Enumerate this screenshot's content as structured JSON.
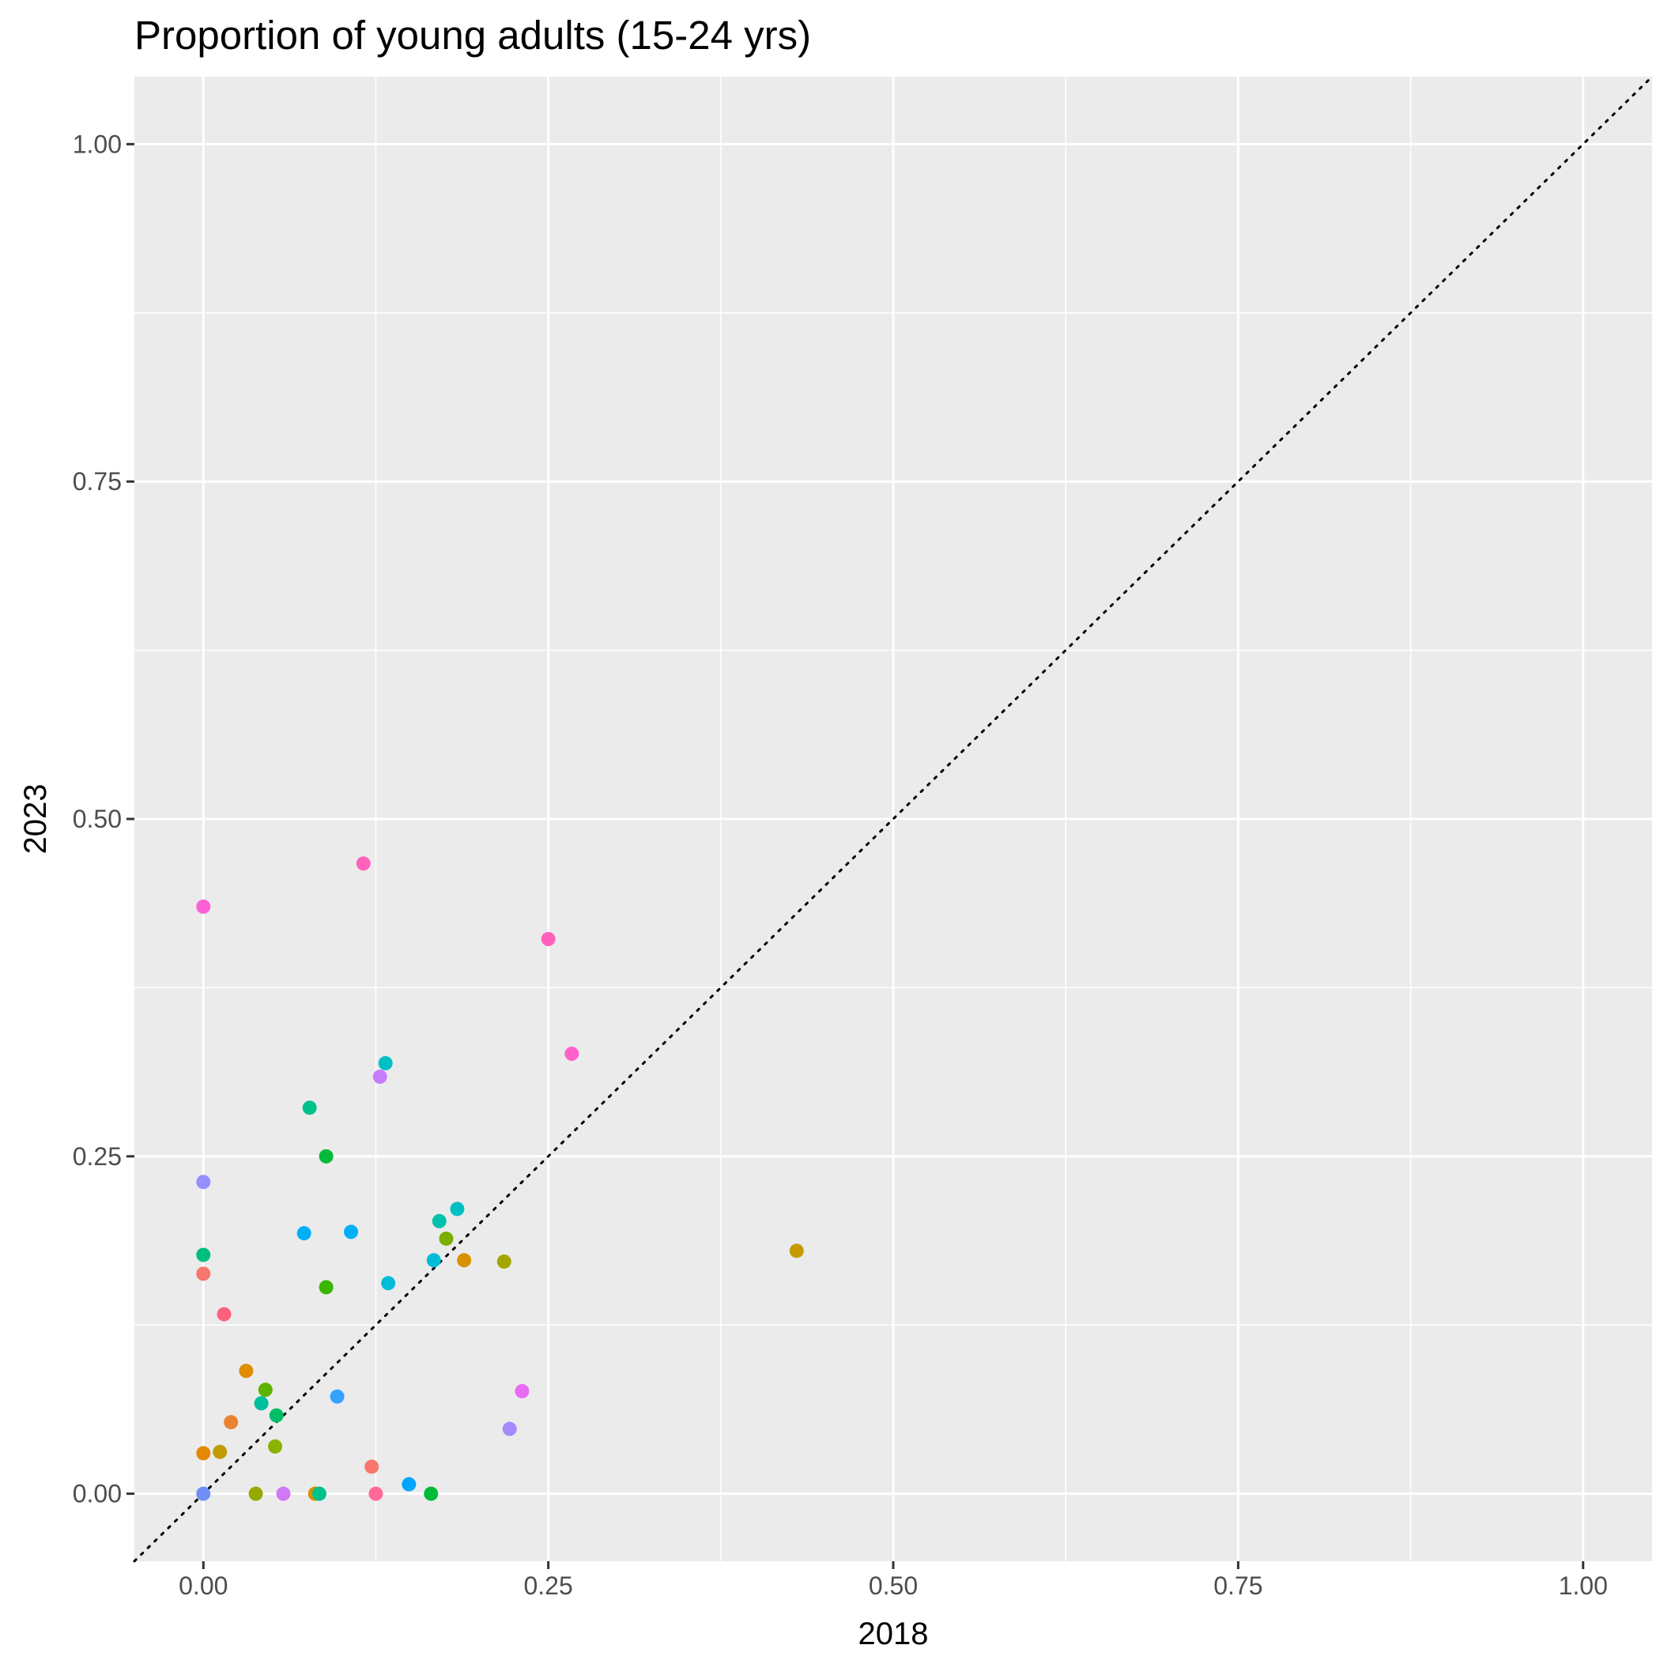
{
  "chart_data": {
    "type": "scatter",
    "title": "Proportion of young adults (15-24 yrs)",
    "xlabel": "2018",
    "ylabel": "2023",
    "xlim": [
      -0.05,
      1.05
    ],
    "ylim": [
      -0.05,
      1.05
    ],
    "x_ticks": [
      0.0,
      0.25,
      0.5,
      0.75,
      1.0
    ],
    "x_tick_labels": [
      "0.00",
      "0.25",
      "0.50",
      "0.75",
      "1.00"
    ],
    "y_ticks": [
      0.0,
      0.25,
      0.5,
      0.75,
      1.0
    ],
    "y_tick_labels": [
      "0.00",
      "0.25",
      "0.50",
      "0.75",
      "1.00"
    ],
    "reference_line": {
      "style": "dotted",
      "slope": 1,
      "intercept": 0,
      "color": "#000000"
    },
    "grid": true,
    "panel_background": "#ebebeb",
    "grid_color": "#ffffff",
    "legend": "none",
    "points": [
      {
        "x": 0.0,
        "y": 0.435,
        "color": "#fc61d5"
      },
      {
        "x": 0.116,
        "y": 0.467,
        "color": "#ff62bc"
      },
      {
        "x": 0.25,
        "y": 0.411,
        "color": "#ff62bc"
      },
      {
        "x": 0.267,
        "y": 0.326,
        "color": "#ff61c9"
      },
      {
        "x": 0.132,
        "y": 0.319,
        "color": "#00bfc4"
      },
      {
        "x": 0.128,
        "y": 0.309,
        "color": "#c77cff"
      },
      {
        "x": 0.077,
        "y": 0.286,
        "color": "#00c08b"
      },
      {
        "x": 0.089,
        "y": 0.25,
        "color": "#00ba38"
      },
      {
        "x": 0.0,
        "y": 0.231,
        "color": "#9590ff"
      },
      {
        "x": 0.184,
        "y": 0.211,
        "color": "#00bfc4"
      },
      {
        "x": 0.171,
        "y": 0.202,
        "color": "#00c1aa"
      },
      {
        "x": 0.107,
        "y": 0.194,
        "color": "#00b0f6"
      },
      {
        "x": 0.073,
        "y": 0.193,
        "color": "#00b0f6"
      },
      {
        "x": 0.176,
        "y": 0.189,
        "color": "#7cae00"
      },
      {
        "x": 0.43,
        "y": 0.18,
        "color": "#c49a00"
      },
      {
        "x": 0.0,
        "y": 0.177,
        "color": "#00bf7d"
      },
      {
        "x": 0.167,
        "y": 0.173,
        "color": "#00bcd8"
      },
      {
        "x": 0.189,
        "y": 0.173,
        "color": "#d89000"
      },
      {
        "x": 0.218,
        "y": 0.172,
        "color": "#a3a500"
      },
      {
        "x": 0.0,
        "y": 0.163,
        "color": "#f8766d"
      },
      {
        "x": 0.134,
        "y": 0.156,
        "color": "#00bcd8"
      },
      {
        "x": 0.089,
        "y": 0.153,
        "color": "#39b600"
      },
      {
        "x": 0.015,
        "y": 0.133,
        "color": "#fd617c"
      },
      {
        "x": 0.031,
        "y": 0.091,
        "color": "#de8c00"
      },
      {
        "x": 0.045,
        "y": 0.077,
        "color": "#5eb300"
      },
      {
        "x": 0.231,
        "y": 0.076,
        "color": "#e76bf3"
      },
      {
        "x": 0.097,
        "y": 0.072,
        "color": "#35a2ff"
      },
      {
        "x": 0.042,
        "y": 0.067,
        "color": "#00bf9c"
      },
      {
        "x": 0.053,
        "y": 0.058,
        "color": "#00be67"
      },
      {
        "x": 0.02,
        "y": 0.053,
        "color": "#ea8331"
      },
      {
        "x": 0.222,
        "y": 0.048,
        "color": "#a58aff"
      },
      {
        "x": 0.052,
        "y": 0.035,
        "color": "#8ab300"
      },
      {
        "x": 0.0,
        "y": 0.03,
        "color": "#e58700"
      },
      {
        "x": 0.012,
        "y": 0.031,
        "color": "#c09b00"
      },
      {
        "x": 0.122,
        "y": 0.02,
        "color": "#f8766d"
      },
      {
        "x": 0.149,
        "y": 0.007,
        "color": "#00a5ff"
      },
      {
        "x": 0.0,
        "y": 0.0,
        "color": "#6f8ef8"
      },
      {
        "x": 0.038,
        "y": 0.0,
        "color": "#96a900"
      },
      {
        "x": 0.058,
        "y": 0.0,
        "color": "#d078f5"
      },
      {
        "x": 0.081,
        "y": 0.0,
        "color": "#d89000"
      },
      {
        "x": 0.084,
        "y": 0.0,
        "color": "#00c08b"
      },
      {
        "x": 0.125,
        "y": 0.0,
        "color": "#ff6a98"
      },
      {
        "x": 0.165,
        "y": 0.0,
        "color": "#00ba38"
      }
    ]
  }
}
